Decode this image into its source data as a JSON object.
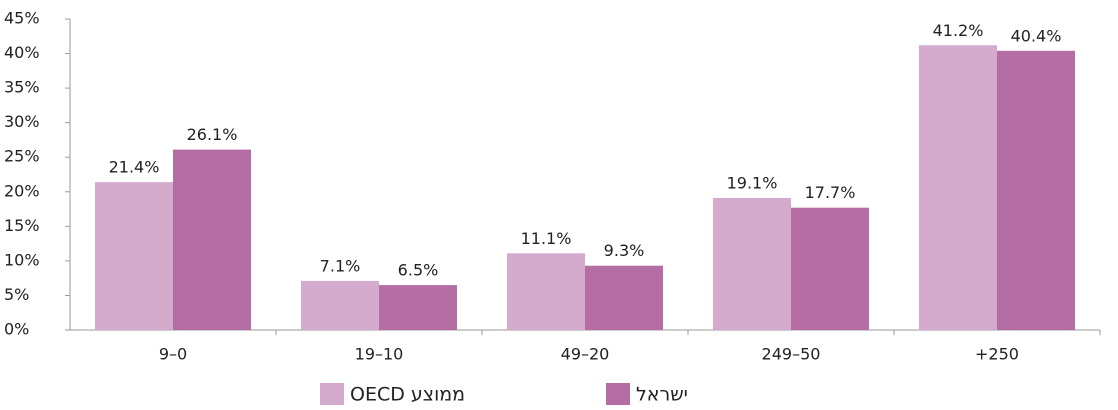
{
  "chart_data": {
    "type": "bar",
    "categories": [
      "9–0",
      "19–10",
      "49–20",
      "249–50",
      "+250"
    ],
    "series": [
      {
        "name": "ממוצע OECD",
        "color": "#d4abcd",
        "values": [
          21.4,
          7.1,
          11.1,
          19.1,
          41.2
        ],
        "value_labels": [
          "21.4%",
          "7.1%",
          "11.1%",
          "19.1%",
          "41.2%"
        ]
      },
      {
        "name": "ישראל",
        "color": "#b56ea4",
        "values": [
          26.1,
          6.5,
          9.3,
          17.7,
          40.4
        ],
        "value_labels": [
          "26.1%",
          "6.5%",
          "9.3%",
          "17.7%",
          "40.4%"
        ]
      }
    ],
    "ylim": [
      0,
      45
    ],
    "yticks": [
      {
        "value": 0,
        "label": "0%"
      },
      {
        "value": 5,
        "label": "5%"
      },
      {
        "value": 10,
        "label": "10%"
      },
      {
        "value": 15,
        "label": "15%"
      },
      {
        "value": 20,
        "label": "20%"
      },
      {
        "value": 25,
        "label": "25%"
      },
      {
        "value": 30,
        "label": "30%"
      },
      {
        "value": 35,
        "label": "35%"
      },
      {
        "value": 40,
        "label": "40%"
      },
      {
        "value": 45,
        "label": "45%"
      }
    ],
    "grid": false,
    "legend": "bottom"
  }
}
